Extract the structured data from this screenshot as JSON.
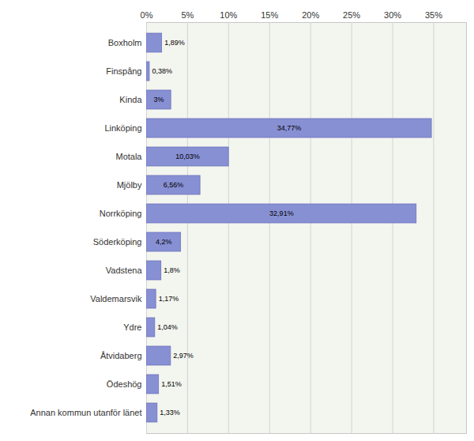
{
  "chart_data": {
    "type": "bar",
    "orientation": "horizontal",
    "categories": [
      "Boxholm",
      "Finspång",
      "Kinda",
      "Linköping",
      "Motala",
      "Mjölby",
      "Norrköping",
      "Söderköping",
      "Vadstena",
      "Valdemarsvik",
      "Ydre",
      "Åtvidaberg",
      "Ödeshög",
      "Annan kommun utanför länet"
    ],
    "values": [
      1.89,
      0.38,
      3,
      34.77,
      10.03,
      6.56,
      32.91,
      4.2,
      1.8,
      1.17,
      1.04,
      2.97,
      1.51,
      1.33
    ],
    "value_labels": [
      "1,89%",
      "0,38%",
      "3%",
      "34,77%",
      "10,03%",
      "6,56%",
      "32,91%",
      "4,2%",
      "1,8%",
      "1,17%",
      "1,04%",
      "2,97%",
      "1,51%",
      "1,33%"
    ],
    "color": "#8890d4",
    "xlim": [
      0,
      39
    ],
    "xticks": [
      {
        "value": 0,
        "label": "0%"
      },
      {
        "value": 5,
        "label": "5%"
      },
      {
        "value": 10,
        "label": "10%"
      },
      {
        "value": 15,
        "label": "15%"
      },
      {
        "value": 20,
        "label": "20%"
      },
      {
        "value": 25,
        "label": "25%"
      },
      {
        "value": 30,
        "label": "30%"
      },
      {
        "value": 35,
        "label": "35%"
      }
    ],
    "grid": true,
    "data_labels": true
  }
}
